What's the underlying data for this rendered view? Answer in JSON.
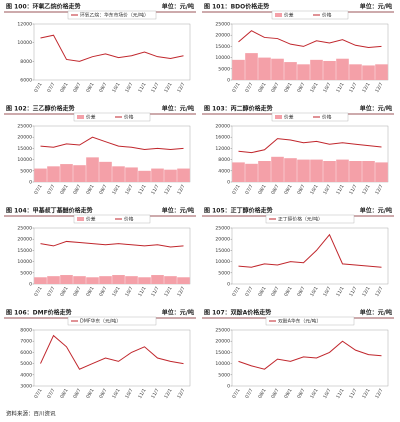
{
  "chart_data": [
    {
      "type": "line",
      "title": "图 100：环氧乙烷价格走势",
      "unit": "单位：元/吨",
      "categories": [
        "07/1",
        "07/7",
        "08/1",
        "08/7",
        "09/1",
        "09/7",
        "10/1",
        "10/7",
        "11/1",
        "11/7",
        "12/1",
        "12/7"
      ],
      "series": [
        {
          "name": "环氧乙烷：华东市场价（元/吨）",
          "color": "#c0262c",
          "kind": "line",
          "values": [
            10500,
            10800,
            8200,
            8000,
            8500,
            8800,
            8400,
            8600,
            9000,
            8500,
            8300,
            8600
          ]
        }
      ],
      "ylim": [
        6000,
        12000
      ],
      "yticks": [
        6000,
        8000,
        10000,
        12000
      ]
    },
    {
      "type": "bar-line",
      "title": "图 101：BDO价格走势",
      "unit": "单位：元/吨",
      "categories": [
        "07/1",
        "07/7",
        "08/1",
        "08/7",
        "09/1",
        "09/7",
        "10/1",
        "10/7",
        "11/1",
        "11/7",
        "12/1",
        "12/7"
      ],
      "series": [
        {
          "name": "价差",
          "color": "#f4a0a8",
          "kind": "bar",
          "values": [
            9000,
            12000,
            10000,
            9500,
            8000,
            7000,
            9000,
            8500,
            9500,
            7000,
            6500,
            7000
          ]
        },
        {
          "name": "价格",
          "color": "#c0262c",
          "kind": "line",
          "values": [
            17000,
            22000,
            19000,
            18500,
            16000,
            15000,
            17500,
            16500,
            18000,
            15500,
            14500,
            15000
          ]
        }
      ],
      "ylim": [
        0,
        25000
      ],
      "yticks": [
        0,
        5000,
        10000,
        15000,
        20000,
        25000
      ]
    },
    {
      "type": "bar-line",
      "title": "图 102：三乙醇价格走势",
      "unit": "单位：元/吨",
      "categories": [
        "07/1",
        "07/7",
        "08/1",
        "08/7",
        "09/1",
        "09/7",
        "10/1",
        "10/7",
        "11/1",
        "11/7",
        "12/1",
        "12/7"
      ],
      "series": [
        {
          "name": "价差",
          "color": "#f4a0a8",
          "kind": "bar",
          "values": [
            6000,
            7000,
            8000,
            7500,
            11000,
            9000,
            7000,
            6500,
            5000,
            6000,
            5500,
            6000
          ]
        },
        {
          "name": "价格",
          "color": "#c0262c",
          "kind": "line",
          "values": [
            16000,
            15500,
            17000,
            16500,
            20000,
            18000,
            16000,
            15500,
            14500,
            15000,
            14500,
            15000
          ]
        }
      ],
      "ylim": [
        0,
        25000
      ],
      "yticks": [
        0,
        5000,
        10000,
        15000,
        20000,
        25000
      ]
    },
    {
      "type": "bar-line",
      "title": "图 103：丙二醇价格走势",
      "unit": "单位：元/吨",
      "categories": [
        "07/1",
        "07/7",
        "08/1",
        "08/7",
        "09/1",
        "09/7",
        "10/1",
        "10/7",
        "11/1",
        "11/7",
        "12/1",
        "12/7"
      ],
      "series": [
        {
          "name": "价差",
          "color": "#f4a0a8",
          "kind": "bar",
          "values": [
            7000,
            6500,
            7500,
            9000,
            8500,
            8000,
            8000,
            7500,
            8000,
            7500,
            7500,
            7000
          ]
        },
        {
          "name": "价格",
          "color": "#c0262c",
          "kind": "line",
          "values": [
            11000,
            10500,
            11500,
            15500,
            15000,
            14000,
            14500,
            13500,
            14000,
            13500,
            13000,
            12500
          ]
        }
      ],
      "ylim": [
        0,
        20000
      ],
      "yticks": [
        0,
        4000,
        8000,
        12000,
        16000,
        20000
      ]
    },
    {
      "type": "bar-line",
      "title": "图 104：甲基叔丁基醚价格走势",
      "unit": "单位：元/吨",
      "categories": [
        "07/1",
        "07/7",
        "08/1",
        "08/7",
        "09/1",
        "09/7",
        "10/1",
        "10/7",
        "11/1",
        "11/7",
        "12/1",
        "12/7"
      ],
      "series": [
        {
          "name": "价差",
          "color": "#f4a0a8",
          "kind": "bar",
          "values": [
            3000,
            3500,
            4000,
            3500,
            3000,
            3500,
            4000,
            3500,
            3000,
            4000,
            3500,
            3000
          ]
        },
        {
          "name": "价格",
          "color": "#c0262c",
          "kind": "line",
          "values": [
            18000,
            17000,
            19000,
            18500,
            18000,
            17500,
            18000,
            17500,
            17000,
            17500,
            16500,
            17000
          ]
        }
      ],
      "ylim": [
        0,
        25000
      ],
      "yticks": [
        0,
        5000,
        10000,
        15000,
        20000,
        25000
      ]
    },
    {
      "type": "line",
      "title": "图 105：正丁醇价格走势",
      "unit": "单位：元/吨",
      "categories": [
        "07/1",
        "07/7",
        "08/1",
        "08/7",
        "09/1",
        "09/7",
        "10/1",
        "10/7",
        "11/1",
        "11/7",
        "12/1",
        "12/7"
      ],
      "series": [
        {
          "name": "正丁醇价格（元/吨）",
          "color": "#c0262c",
          "kind": "line",
          "values": [
            8000,
            7500,
            9000,
            8500,
            10000,
            9500,
            15000,
            22000,
            9000,
            8500,
            8000,
            7500
          ]
        }
      ],
      "ylim": [
        0,
        25000
      ],
      "yticks": [
        0,
        5000,
        10000,
        15000,
        20000,
        25000
      ]
    },
    {
      "type": "line",
      "title": "图 106：DMF价格走势",
      "unit": "单位：元/吨",
      "categories": [
        "07/1",
        "07/7",
        "08/1",
        "08/7",
        "09/1",
        "09/7",
        "10/1",
        "10/7",
        "11/1",
        "11/7",
        "12/1",
        "12/7"
      ],
      "series": [
        {
          "name": "DMF华东（元/吨）",
          "color": "#c0262c",
          "kind": "line",
          "values": [
            5000,
            7500,
            6500,
            4500,
            5000,
            5500,
            5200,
            6000,
            6500,
            5500,
            5200,
            5000
          ]
        }
      ],
      "ylim": [
        3000,
        8000
      ],
      "yticks": [
        3000,
        4000,
        5000,
        6000,
        7000,
        8000
      ]
    },
    {
      "type": "line",
      "title": "图 107：双酚A价格走势",
      "unit": "单位：元/吨",
      "categories": [
        "07/1",
        "07/7",
        "08/1",
        "08/7",
        "09/1",
        "09/7",
        "10/1",
        "10/7",
        "11/1",
        "11/7",
        "12/1",
        "12/7"
      ],
      "series": [
        {
          "name": "双酚A华东（元/吨）",
          "color": "#c0262c",
          "kind": "line",
          "values": [
            11000,
            9000,
            7500,
            12000,
            11000,
            13000,
            12500,
            15000,
            20000,
            16000,
            14000,
            13500
          ]
        }
      ],
      "ylim": [
        0,
        25000
      ],
      "yticks": [
        0,
        5000,
        10000,
        15000,
        20000,
        25000
      ]
    }
  ],
  "footer": "资料来源：百川资讯"
}
